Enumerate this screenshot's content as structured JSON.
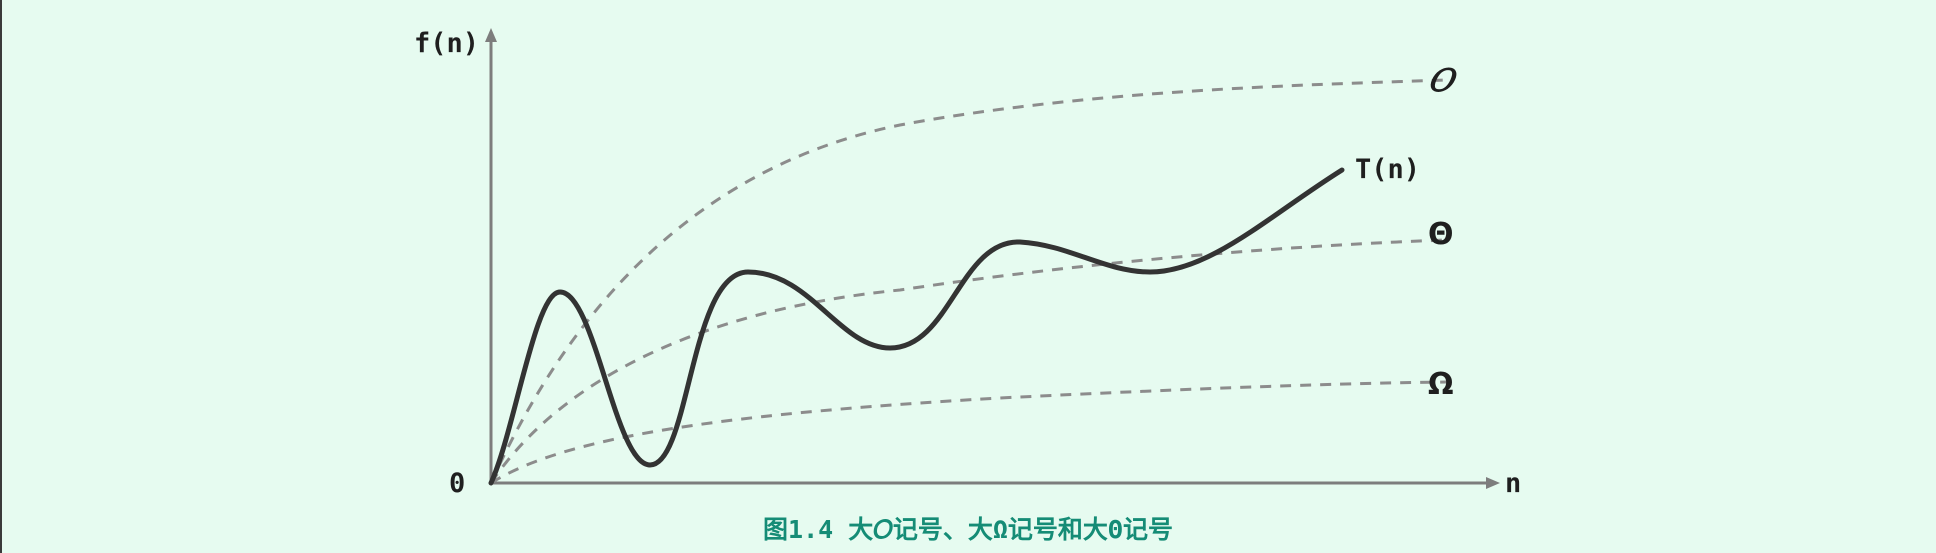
{
  "figure": {
    "y_axis_label": "f(n)",
    "x_axis_label": "n",
    "origin_label": "0",
    "curves": [
      {
        "name": "T(n)",
        "label": "T(n)",
        "style": "solid",
        "color": "#333333"
      },
      {
        "name": "O",
        "label": "𝑂",
        "style": "dashed",
        "color": "#8c8c8c"
      },
      {
        "name": "Theta",
        "label": "Θ",
        "style": "dashed",
        "color": "#8c8c8c"
      },
      {
        "name": "Omega",
        "label": "Ω",
        "style": "dashed",
        "color": "#8c8c8c"
      }
    ],
    "caption": "图1.4 大𝑂记号、大Ω记号和大Θ记号"
  },
  "colors": {
    "background": "#e6fbf0",
    "axis": "#7d7d7d",
    "caption": "#158c76"
  }
}
